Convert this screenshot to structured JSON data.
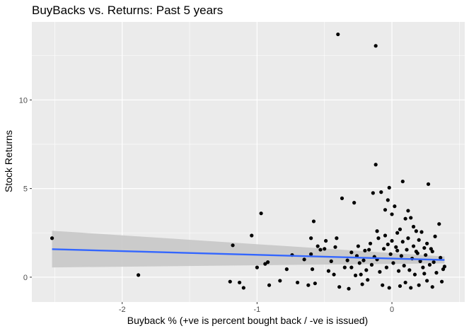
{
  "chart_data": {
    "type": "scatter",
    "title": "BuyBacks vs. Returns: Past 5 years",
    "xlabel": "Buyback % (+ve is percent bought back / -ve is issued)",
    "ylabel": "Stock Returns",
    "xlim": [
      -2.67,
      0.54
    ],
    "ylim": [
      -1.4,
      14.4
    ],
    "x_ticks": [
      -2,
      -1,
      0
    ],
    "x_tick_labels": [
      "-2",
      "-1",
      "0"
    ],
    "y_ticks": [
      0,
      5,
      10
    ],
    "y_tick_labels": [
      "0",
      "5",
      "10"
    ],
    "grid": true,
    "legend": "none",
    "colors": {
      "panel_background": "#ebebeb",
      "grid": "#ffffff",
      "points": "#000000",
      "fit_line": "#3366ff",
      "confidence_band": "#c8c8c8"
    },
    "trend": {
      "method": "linear",
      "x": [
        -2.52,
        0.39
      ],
      "y": [
        1.58,
        0.97
      ],
      "ci_lower": [
        0.55,
        0.78
      ],
      "ci_upper": [
        2.62,
        1.17
      ]
    },
    "series": [
      {
        "points": [
          [
            -2.52,
            2.2
          ],
          [
            -1.88,
            0.12
          ],
          [
            -1.18,
            1.8
          ],
          [
            -1.1,
            -0.6
          ],
          [
            -1.13,
            -0.3
          ],
          [
            -1.2,
            -0.25
          ],
          [
            -1.04,
            2.35
          ],
          [
            -1.0,
            0.55
          ],
          [
            -0.97,
            3.6
          ],
          [
            -0.92,
            0.85
          ],
          [
            -0.94,
            0.75
          ],
          [
            -0.91,
            -0.45
          ],
          [
            -0.83,
            -0.2
          ],
          [
            -0.78,
            0.45
          ],
          [
            -0.74,
            1.25
          ],
          [
            -0.7,
            -0.3
          ],
          [
            -0.65,
            1.0
          ],
          [
            -0.62,
            -0.45
          ],
          [
            -0.57,
            -0.35
          ],
          [
            -0.59,
            0.45
          ],
          [
            -0.6,
            1.3
          ],
          [
            -0.58,
            3.15
          ],
          [
            -0.6,
            2.2
          ],
          [
            -0.55,
            1.75
          ],
          [
            -0.53,
            1.55
          ],
          [
            -0.5,
            1.6
          ],
          [
            -0.49,
            2.05
          ],
          [
            -0.47,
            0.35
          ],
          [
            -0.45,
            0.9
          ],
          [
            -0.43,
            0.15
          ],
          [
            -0.41,
            2.2
          ],
          [
            -0.42,
            1.7
          ],
          [
            -0.4,
            13.7
          ],
          [
            -0.39,
            -0.55
          ],
          [
            -0.37,
            4.45
          ],
          [
            -0.35,
            0.55
          ],
          [
            -0.33,
            0.95
          ],
          [
            -0.32,
            -0.65
          ],
          [
            -0.3,
            1.4
          ],
          [
            -0.28,
            4.2
          ],
          [
            -0.27,
            0.1
          ],
          [
            -0.25,
            1.75
          ],
          [
            -0.24,
            0.8
          ],
          [
            -0.22,
            -0.4
          ],
          [
            -0.2,
            1.5
          ],
          [
            -0.19,
            0.4
          ],
          [
            -0.18,
            -0.15
          ],
          [
            -0.16,
            1.9
          ],
          [
            -0.14,
            4.75
          ],
          [
            -0.12,
            13.05
          ],
          [
            -0.12,
            6.35
          ],
          [
            -0.11,
            1.0
          ],
          [
            -0.1,
            2.2
          ],
          [
            -0.08,
            4.8
          ],
          [
            -0.05,
            3.8
          ],
          [
            -0.03,
            4.35
          ],
          [
            -0.02,
            5.05
          ],
          [
            0.0,
            3.55
          ],
          [
            0.02,
            4.0
          ],
          [
            0.04,
            2.5
          ],
          [
            0.08,
            5.4
          ],
          [
            0.1,
            3.3
          ],
          [
            0.12,
            3.75
          ],
          [
            0.14,
            3.35
          ],
          [
            0.16,
            2.85
          ],
          [
            0.18,
            1.45
          ],
          [
            0.2,
            2.1
          ],
          [
            0.22,
            2.55
          ],
          [
            0.24,
            0.2
          ],
          [
            0.26,
            1.9
          ],
          [
            0.27,
            5.25
          ],
          [
            0.29,
            1.6
          ],
          [
            0.31,
            0.85
          ],
          [
            0.32,
            2.3
          ],
          [
            0.35,
            3.0
          ],
          [
            0.37,
            -0.25
          ],
          [
            0.38,
            0.45
          ],
          [
            -0.15,
            0.7
          ],
          [
            -0.13,
            1.15
          ],
          [
            -0.09,
            0.3
          ],
          [
            -0.06,
            1.6
          ],
          [
            -0.04,
            0.55
          ],
          [
            -0.01,
            1.3
          ],
          [
            0.01,
            0.8
          ],
          [
            0.03,
            1.7
          ],
          [
            0.05,
            0.35
          ],
          [
            0.07,
            1.2
          ],
          [
            0.09,
            0.65
          ],
          [
            0.11,
            1.55
          ],
          [
            0.13,
            0.4
          ],
          [
            0.15,
            1.05
          ],
          [
            0.17,
            0.15
          ],
          [
            0.19,
            1.35
          ],
          [
            0.21,
            0.9
          ],
          [
            0.23,
            0.55
          ],
          [
            0.25,
            1.25
          ],
          [
            0.28,
            0.7
          ],
          [
            0.3,
            1.45
          ],
          [
            0.33,
            0.25
          ],
          [
            0.36,
            1.1
          ],
          [
            0.39,
            0.6
          ],
          [
            -0.07,
            -0.45
          ],
          [
            -0.02,
            -0.6
          ],
          [
            0.06,
            -0.5
          ],
          [
            0.1,
            -0.3
          ],
          [
            0.14,
            -0.6
          ],
          [
            0.2,
            -0.45
          ],
          [
            0.26,
            -0.2
          ],
          [
            0.3,
            -0.55
          ],
          [
            -0.17,
            1.55
          ],
          [
            -0.21,
            0.95
          ],
          [
            -0.26,
            1.2
          ],
          [
            -0.3,
            0.55
          ],
          [
            -0.23,
            0.15
          ],
          [
            -0.11,
            2.6
          ],
          [
            -0.05,
            2.35
          ],
          [
            0.0,
            2.05
          ],
          [
            0.06,
            2.7
          ],
          [
            0.12,
            2.2
          ],
          [
            0.18,
            2.6
          ],
          [
            0.24,
            1.65
          ],
          [
            -0.03,
            1.85
          ],
          [
            0.04,
            1.5
          ],
          [
            0.08,
            2.0
          ],
          [
            0.16,
            1.75
          ]
        ]
      }
    ]
  }
}
